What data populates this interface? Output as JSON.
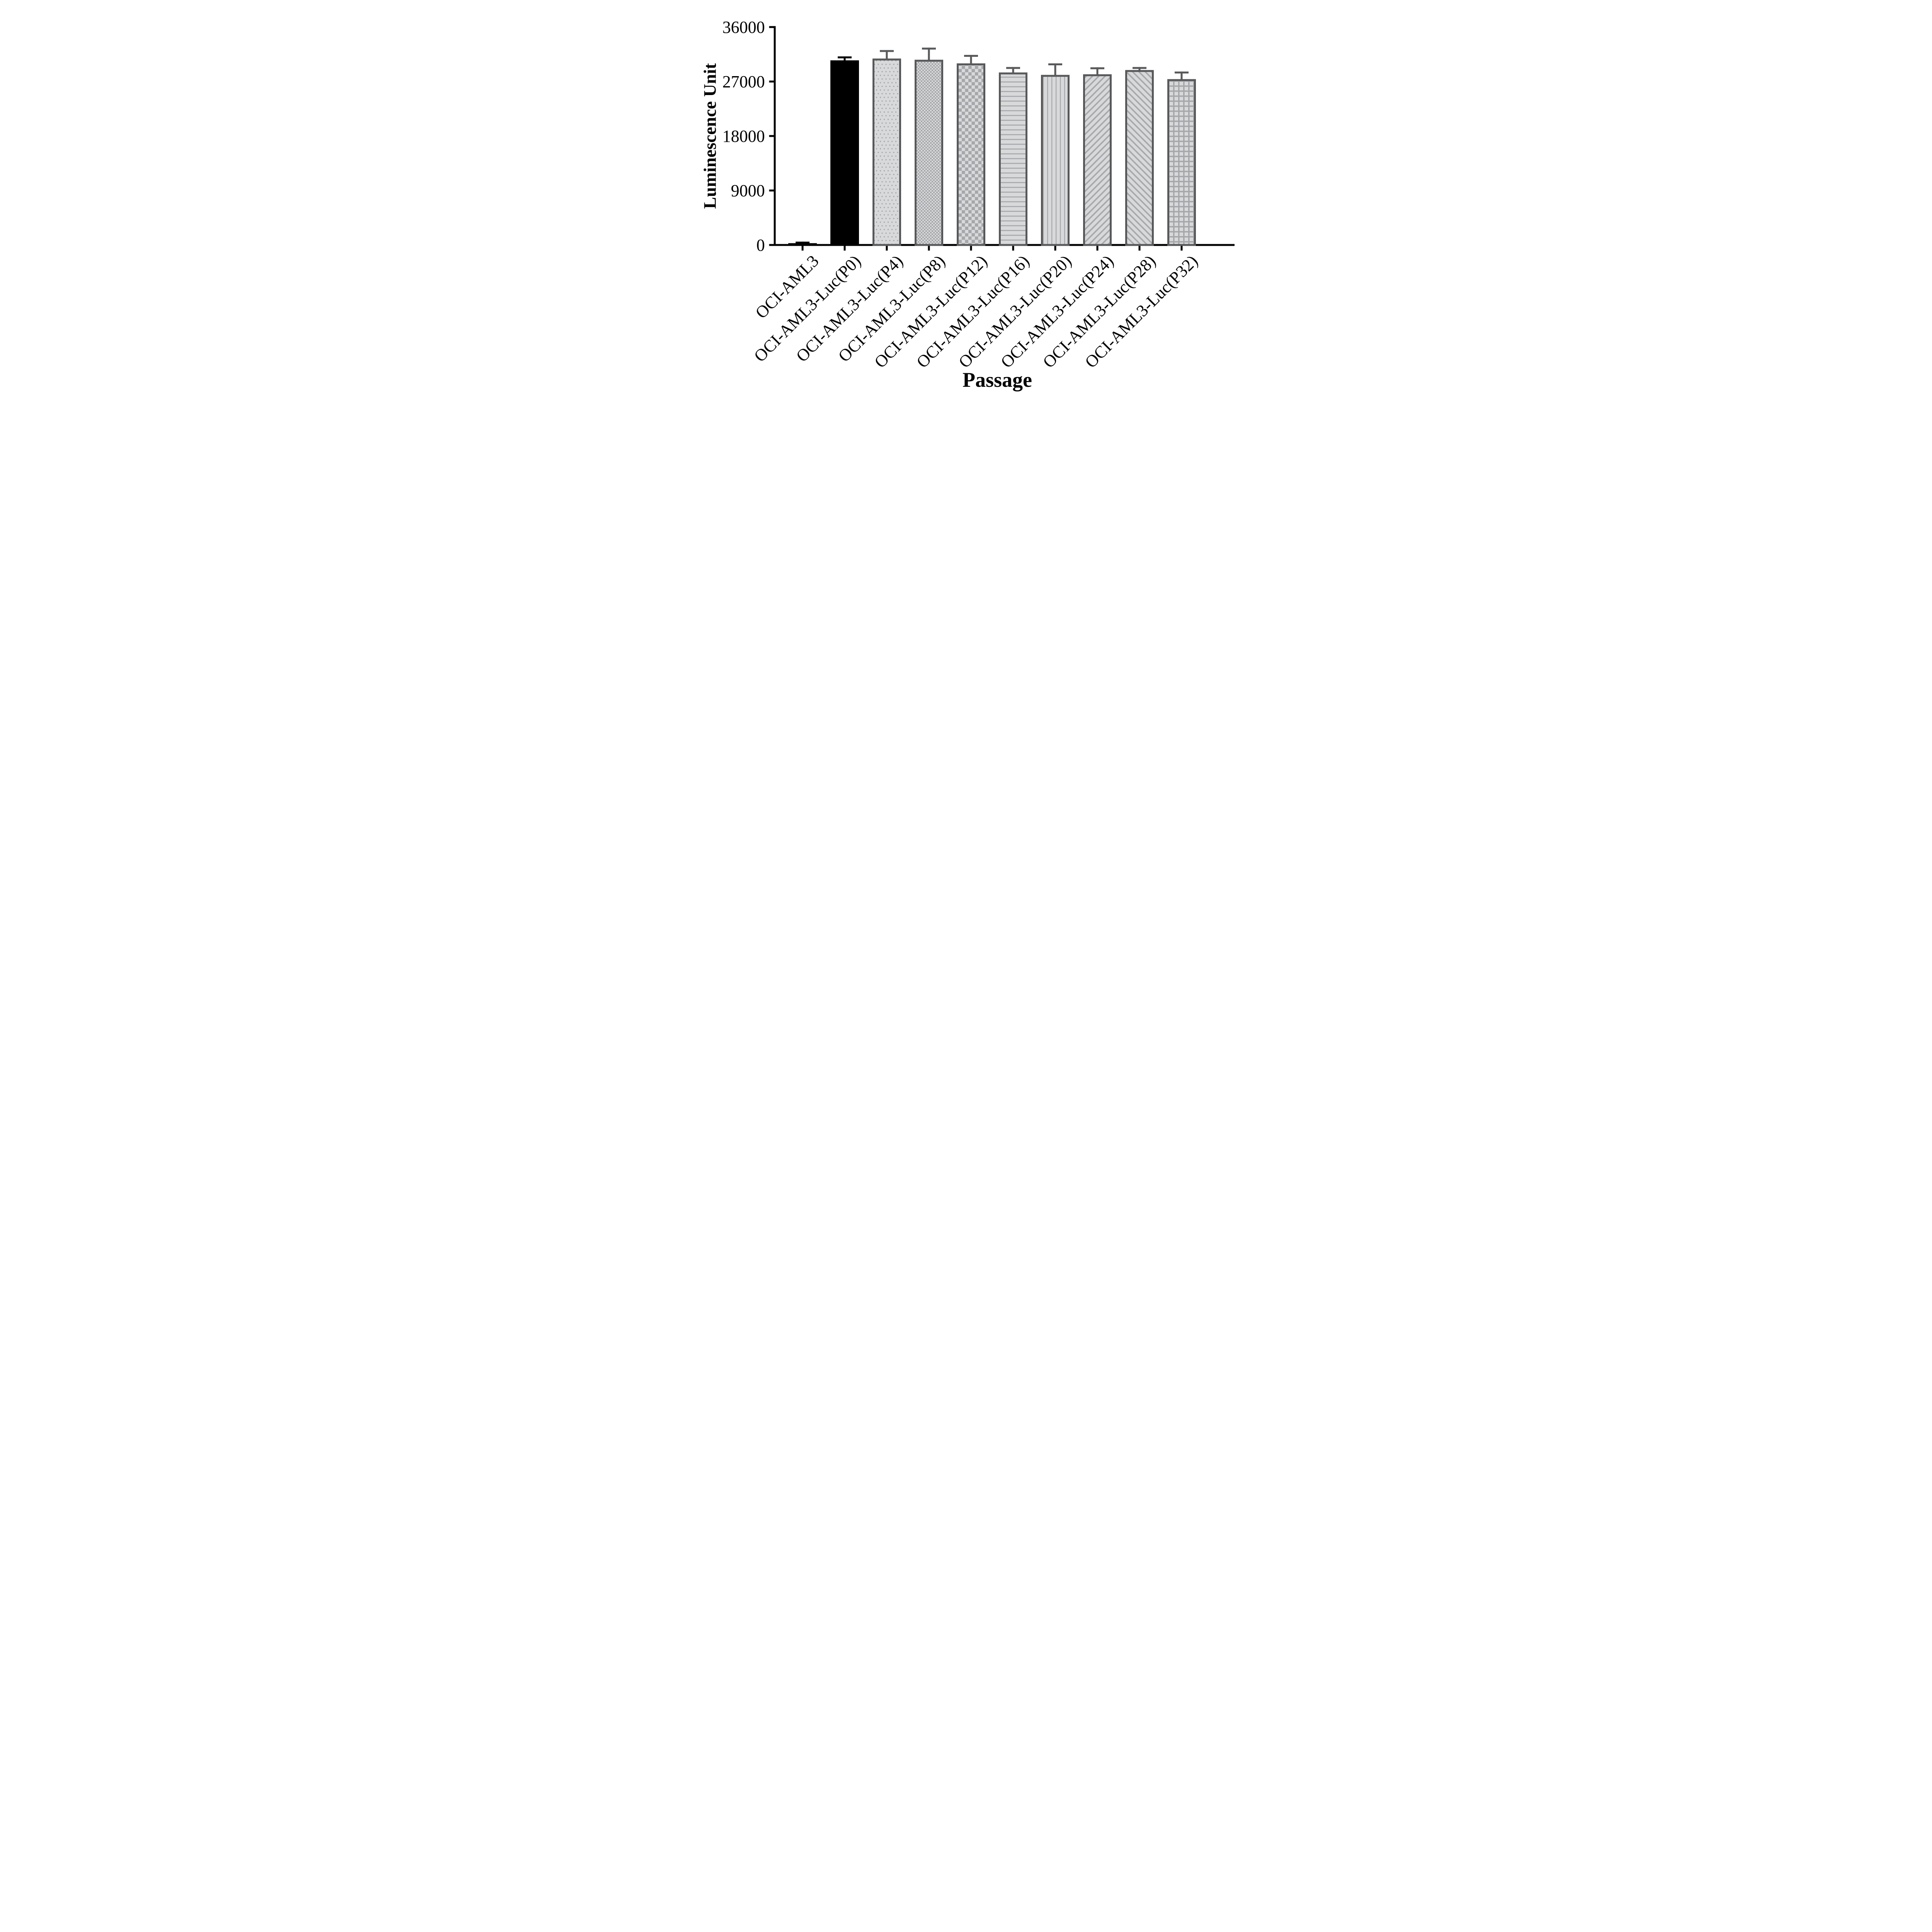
{
  "figure": {
    "y_axis_title": "Luminescence Unit",
    "x_axis_title": "Passage"
  },
  "chart_data": {
    "type": "bar",
    "title": "",
    "xlabel": "Passage",
    "ylabel": "Luminescence Unit",
    "ylim": [
      0,
      36000
    ],
    "yticks": [
      0,
      9000,
      18000,
      27000,
      36000
    ],
    "ytick_labels": [
      "0",
      "9000",
      "18000",
      "27000",
      "36000"
    ],
    "grid": false,
    "legend": "none",
    "categories": [
      "OCI-AML3",
      "OCI-AML3-Luc(P0)",
      "OCI-AML3-Luc(P4)",
      "OCI-AML3-Luc(P8)",
      "OCI-AML3-Luc(P12)",
      "OCI-AML3-Luc(P16)",
      "OCI-AML3-Luc(P20)",
      "OCI-AML3-Luc(P24)",
      "OCI-AML3-Luc(P28)",
      "OCI-AML3-Luc(P32)"
    ],
    "values": [
      300,
      30500,
      30800,
      30600,
      30000,
      28500,
      28100,
      28200,
      28900,
      27400
    ],
    "errors_plus": [
      250,
      650,
      1400,
      2000,
      1400,
      900,
      1900,
      1150,
      500,
      1250
    ],
    "error_bar_style": "caps-up",
    "bar_patterns": [
      "solid-black",
      "solid-black",
      "dots",
      "checker-fine",
      "checker-coarse",
      "hlines",
      "vlines",
      "diag-up",
      "diag-down",
      "grid"
    ],
    "colors": {
      "black": "#000000",
      "bar_border": "#58595b",
      "pattern_gray": "#a5a7aa",
      "bar_fill": "#d8d9da",
      "axis": "#000000",
      "text": "#000000",
      "background": "#ffffff"
    }
  }
}
